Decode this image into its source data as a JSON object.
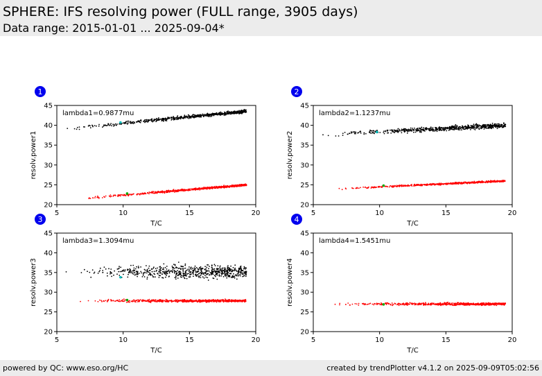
{
  "header": {
    "title": "SPHERE: IFS resolving power (FULL range, 3905 days)",
    "subtitle": "Data range: 2015-01-01 ... 2025-09-04*"
  },
  "footer": {
    "left": "powered by QC: www.eso.org/HC",
    "right": "created by trendPlotter v4.1.2 on 2025-09-09T05:02:56"
  },
  "colors": {
    "series_a": "#000000",
    "series_b": "#ff0000",
    "latest": "#00aa00",
    "highlight": "#00bbbb",
    "badge": "#0000ee"
  },
  "chart_data": [
    {
      "type": "scatter",
      "badge": "1",
      "annotation": "lambda1=0.9877mu",
      "xlabel": "T/C",
      "ylabel": "resolv.power1",
      "xlim": [
        5,
        20
      ],
      "ylim": [
        20,
        45
      ],
      "xticks": [
        5,
        10,
        15,
        20
      ],
      "yticks": [
        20,
        25,
        30,
        35,
        40,
        45
      ],
      "series": [
        {
          "color": "#000000",
          "x_range": [
            5.5,
            19.3
          ],
          "y_at_x0": 39.0,
          "slope": 0.33,
          "spread": 0.4
        },
        {
          "color": "#ff0000",
          "x_range": [
            6.5,
            19.3
          ],
          "y_at_x0": 21.4,
          "slope": 0.28,
          "spread": 0.25
        }
      ],
      "latest": [
        {
          "x": 10.3,
          "y": 22.8
        },
        {
          "x": 9.8,
          "y": 40.7
        }
      ]
    },
    {
      "type": "scatter",
      "badge": "2",
      "annotation": "lambda2=1.1237mu",
      "xlabel": "T/C",
      "ylabel": "resolv.power2",
      "xlim": [
        5,
        20
      ],
      "ylim": [
        20,
        45
      ],
      "xticks": [
        5,
        10,
        15,
        20
      ],
      "yticks": [
        20,
        25,
        30,
        35,
        40,
        45
      ],
      "series": [
        {
          "color": "#000000",
          "x_range": [
            5.5,
            19.5
          ],
          "y_at_x0": 37.6,
          "slope": 0.17,
          "spread": 0.55
        },
        {
          "color": "#ff0000",
          "x_range": [
            6.5,
            19.5
          ],
          "y_at_x0": 23.9,
          "slope": 0.16,
          "spread": 0.2
        }
      ],
      "latest": [
        {
          "x": 10.3,
          "y": 24.8
        },
        {
          "x": 9.8,
          "y": 38.3
        }
      ]
    },
    {
      "type": "scatter",
      "badge": "3",
      "annotation": "lambda3=1.3094mu",
      "xlabel": "T/C",
      "ylabel": "resolv.power3",
      "xlim": [
        5,
        20
      ],
      "ylim": [
        20,
        45
      ],
      "xticks": [
        5,
        10,
        15,
        20
      ],
      "yticks": [
        20,
        25,
        30,
        35,
        40,
        45
      ],
      "series": [
        {
          "color": "#000000",
          "x_range": [
            5.5,
            19.3
          ],
          "y_at_x0": 35.2,
          "slope": 0.0,
          "spread": 1.6
        },
        {
          "color": "#ff0000",
          "x_range": [
            6.5,
            19.3
          ],
          "y_at_x0": 27.8,
          "slope": 0.0,
          "spread": 0.3
        }
      ],
      "latest": [
        {
          "x": 10.3,
          "y": 28.0
        },
        {
          "x": 9.8,
          "y": 33.8
        }
      ]
    },
    {
      "type": "scatter",
      "badge": "4",
      "annotation": "lambda4=1.5451mu",
      "xlabel": "T/C",
      "ylabel": "resolv.power4",
      "xlim": [
        5,
        20
      ],
      "ylim": [
        20,
        45
      ],
      "xticks": [
        5,
        10,
        15,
        20
      ],
      "yticks": [
        20,
        25,
        30,
        35,
        40,
        45
      ],
      "series": [
        {
          "color": "#ff0000",
          "x_range": [
            6.5,
            19.5
          ],
          "y_at_x0": 27.0,
          "slope": 0.0,
          "spread": 0.3
        }
      ],
      "latest": [
        {
          "x": 10.3,
          "y": 26.9
        }
      ]
    }
  ]
}
